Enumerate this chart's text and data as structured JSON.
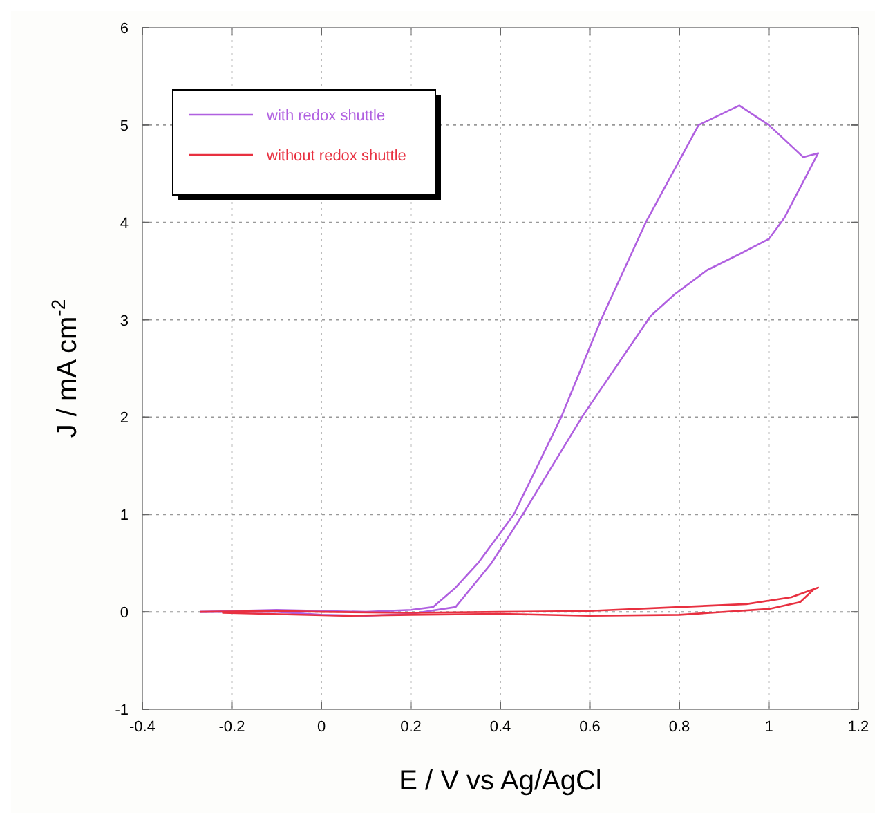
{
  "chart_data": {
    "type": "line",
    "xlabel": "E / V  vs Ag/AgCl",
    "ylabel": "J / mA cm$^{-2}$",
    "xlim": [
      -0.4,
      1.2
    ],
    "xticks": [
      -0.4,
      -0.2,
      0,
      0.2,
      0.4,
      0.6,
      0.8,
      1,
      1.2
    ],
    "ylim": [
      -1,
      6
    ],
    "yticks": [
      -1,
      0,
      1,
      2,
      3,
      4,
      5,
      6
    ],
    "grid": true,
    "legend": "top left",
    "marker": "none",
    "line_style": "solid",
    "series": [
      {
        "name": "with redox shuttle",
        "color": "#b060e0",
        "x": [
          -0.27,
          -0.1,
          0,
          0.1,
          0.2,
          0.25,
          0.3,
          0.35,
          0.43,
          0.536,
          0.625,
          0.725,
          0.843,
          0.934,
          1.0,
          1.077,
          1.11
        ],
        "values": [
          0,
          0.02,
          0.01,
          0.0,
          0.02,
          0.05,
          0.25,
          0.5,
          1.0,
          2.0,
          3.0,
          4.0,
          5.0,
          5.2,
          5.0,
          4.67,
          4.71
        ]
      },
      {
        "color": "#b060e0",
        "x": [
          -0.27,
          -0.1,
          0,
          0.1,
          0.2,
          0.3,
          0.38,
          0.45,
          0.585,
          0.736,
          0.789,
          0.862,
          0.937,
          1.0,
          1.035,
          1.11
        ],
        "values": [
          0,
          0.0,
          -0.03,
          -0.04,
          -0.02,
          0.05,
          0.5,
          1.0,
          2.02,
          3.04,
          3.26,
          3.51,
          3.68,
          3.83,
          4.05,
          4.71
        ]
      },
      {
        "name": "without redox shuttle",
        "color": "#e83040",
        "x": [
          -0.27,
          -0.1,
          0,
          0.2,
          0.4,
          0.6,
          0.8,
          0.95,
          1.05,
          1.11
        ],
        "values": [
          0,
          0.01,
          0.0,
          -0.01,
          0.0,
          0.01,
          0.05,
          0.08,
          0.15,
          0.25
        ]
      },
      {
        "color": "#e83040",
        "x": [
          -0.22,
          0.05,
          0.2,
          0.4,
          0.6,
          0.8,
          1.0,
          1.07,
          1.1
        ],
        "values": [
          -0.01,
          -0.04,
          -0.03,
          -0.02,
          -0.04,
          -0.03,
          0.03,
          0.1,
          0.23
        ]
      }
    ]
  }
}
